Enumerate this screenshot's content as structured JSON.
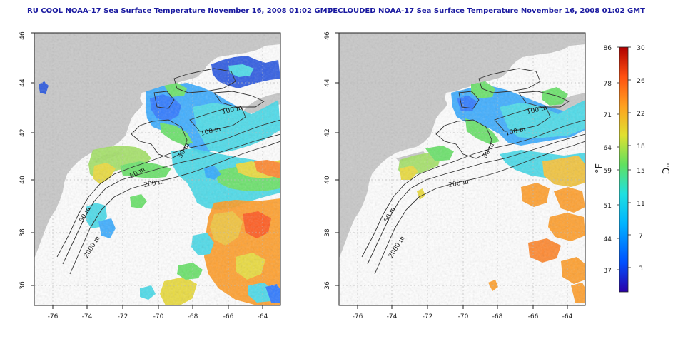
{
  "panels": [
    {
      "id": "left",
      "title": "RU COOL NOAA-17 Sea Surface Temperature November 16, 2008 01:02 GMT",
      "contour_labels": [
        "100 m",
        "100 m",
        "50 m",
        "50 m",
        "200 m",
        "50 m",
        "2000 m"
      ]
    },
    {
      "id": "right",
      "title": "DECLOUDED NOAA-17 Sea Surface Temperature November 16, 2008 01:02 GMT",
      "contour_labels": [
        "100 m",
        "100 m",
        "50 m",
        "200 m",
        "50 m",
        "2000 m"
      ]
    }
  ],
  "axes": {
    "x_ticks": [
      "-76",
      "-74",
      "-72",
      "-70",
      "-68",
      "-66",
      "-64"
    ],
    "y_ticks": [
      "36",
      "38",
      "40",
      "42",
      "44",
      "46"
    ],
    "lon_range": [
      -77.2,
      -62.8
    ],
    "lat_range": [
      35,
      46
    ]
  },
  "colorbar": {
    "fahrenheit_ticks": [
      "86",
      "78",
      "71",
      "64",
      "59",
      "51",
      "44",
      "37"
    ],
    "celsius_ticks": [
      "30",
      "26",
      "22",
      "18",
      "15",
      "11",
      "7",
      "3"
    ],
    "f_unit": "°F",
    "c_unit": "°C",
    "colors": [
      "#2a00a8",
      "#0050ff",
      "#00b4ff",
      "#20e0e0",
      "#60e060",
      "#e0e030",
      "#ffa020",
      "#ff5010",
      "#b00000"
    ]
  },
  "colors": {
    "land": "#c8c8c8",
    "ocean": "#ffffff",
    "title": "#1a1aa0",
    "contour": "#333333",
    "grid": "#bbbbbb"
  }
}
